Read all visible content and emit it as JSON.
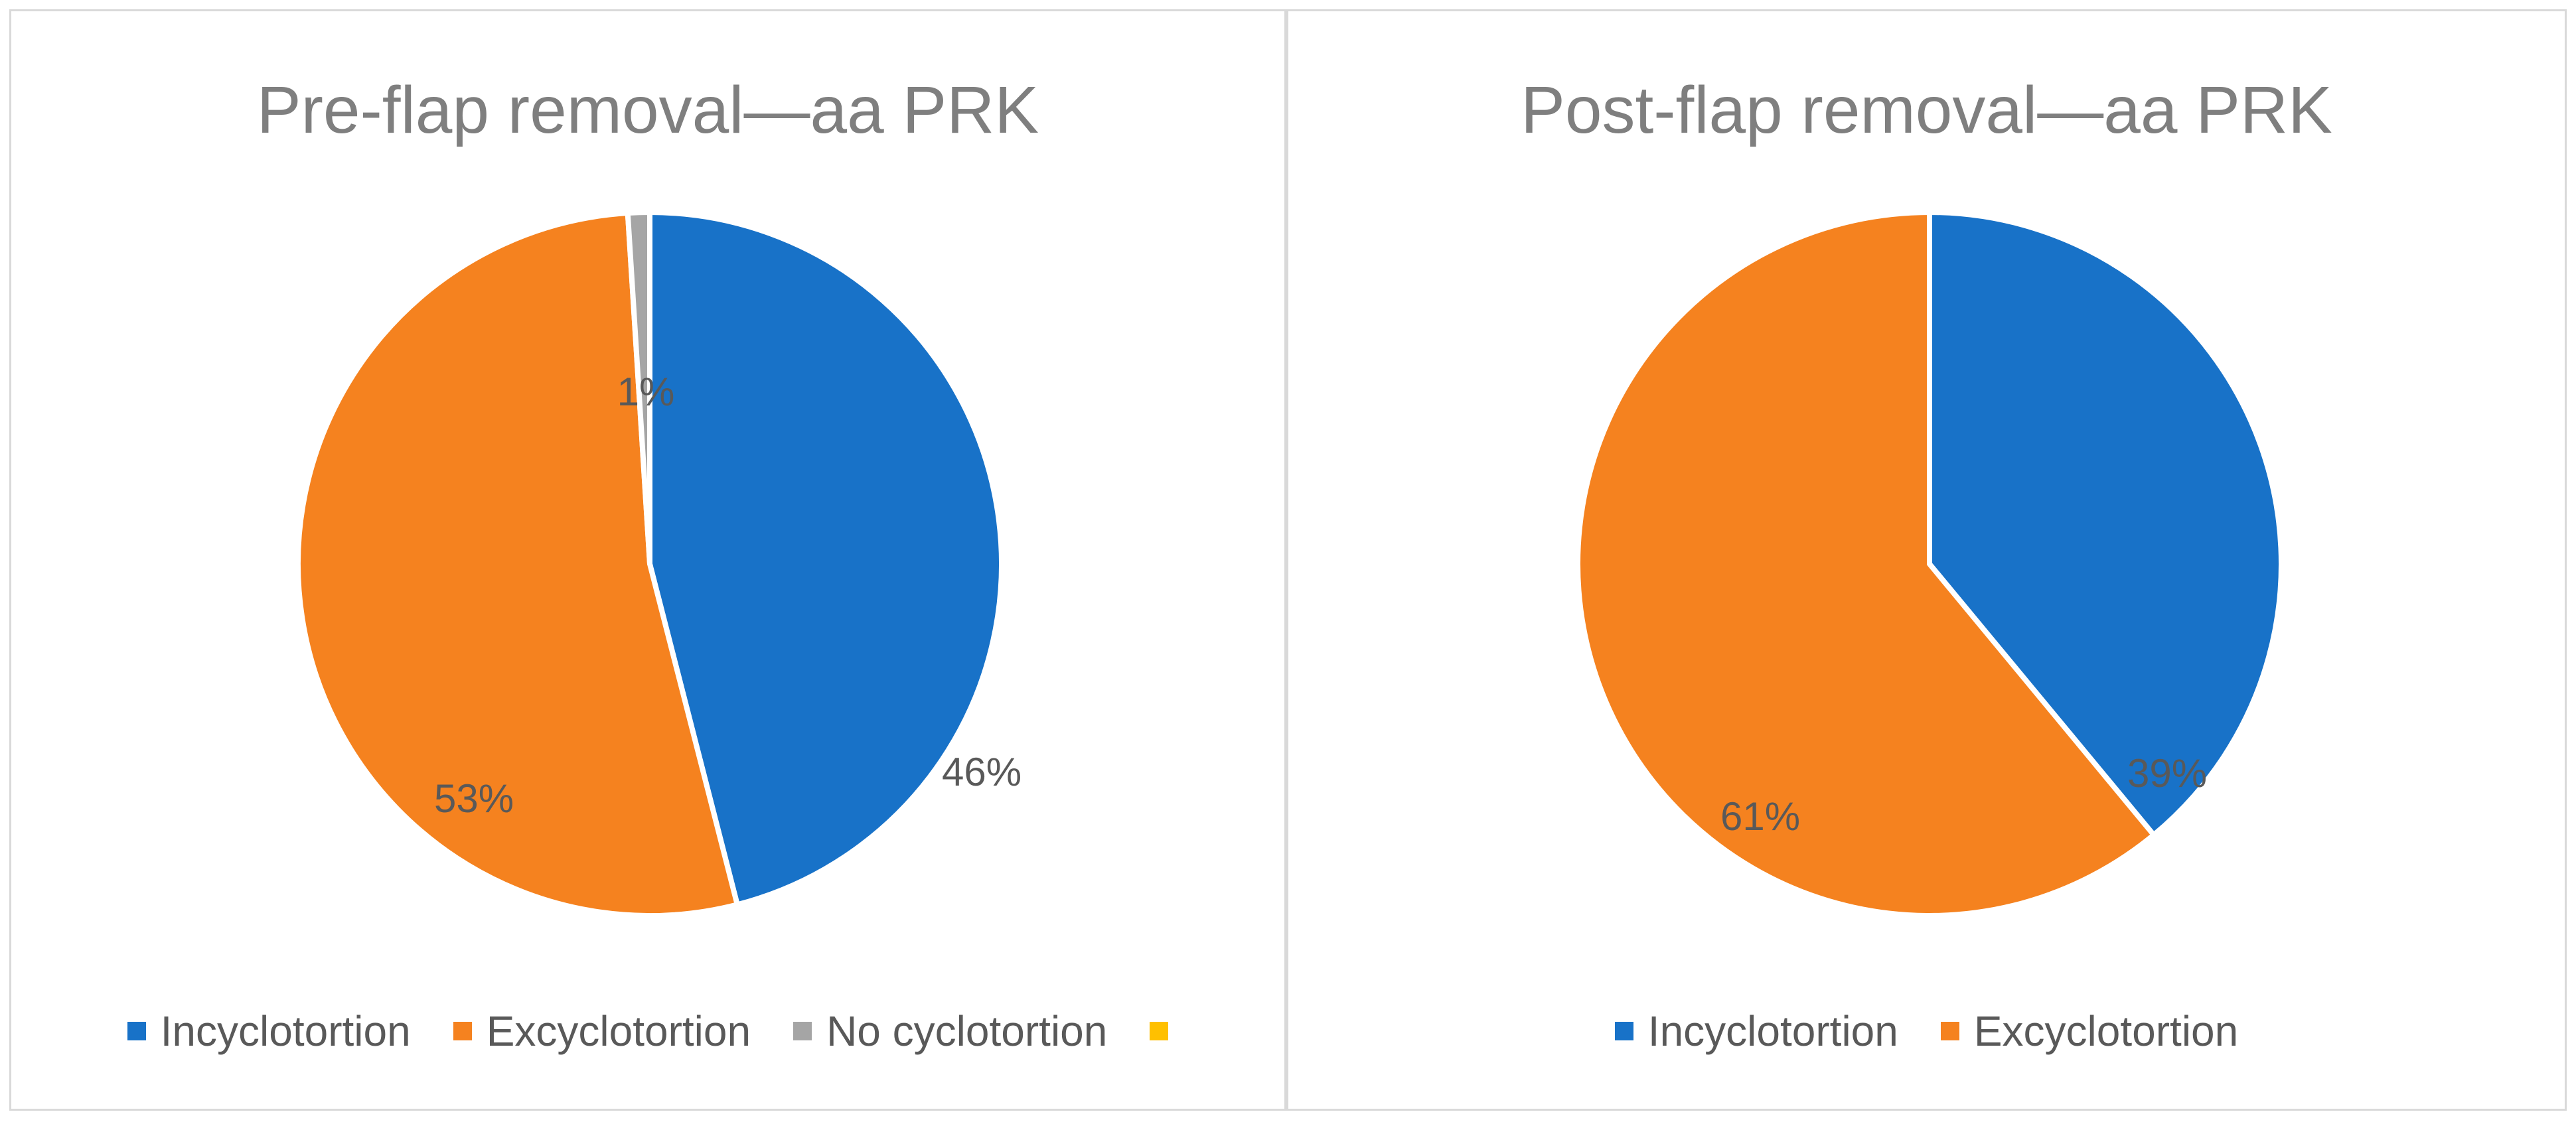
{
  "chart_data": [
    {
      "type": "pie",
      "title": "Pre-flap removal—aa PRK",
      "categories": [
        "Incyclotortion",
        "Excyclotortion",
        "No cyclotortion",
        ""
      ],
      "values": [
        46,
        53,
        1,
        0
      ],
      "data_labels": [
        "46%",
        "53%",
        "1%",
        ""
      ],
      "colors": [
        "#1872c8",
        "#f5821f",
        "#a5a5a5",
        "#ffc000"
      ],
      "legend": "bottom"
    },
    {
      "type": "pie",
      "title": "Post-flap removal—aa PRK",
      "categories": [
        "Incyclotortion",
        "Excyclotortion"
      ],
      "values": [
        39,
        61
      ],
      "data_labels": [
        "39%",
        "61%"
      ],
      "colors": [
        "#1872c8",
        "#f5821f"
      ],
      "legend": "bottom"
    }
  ]
}
